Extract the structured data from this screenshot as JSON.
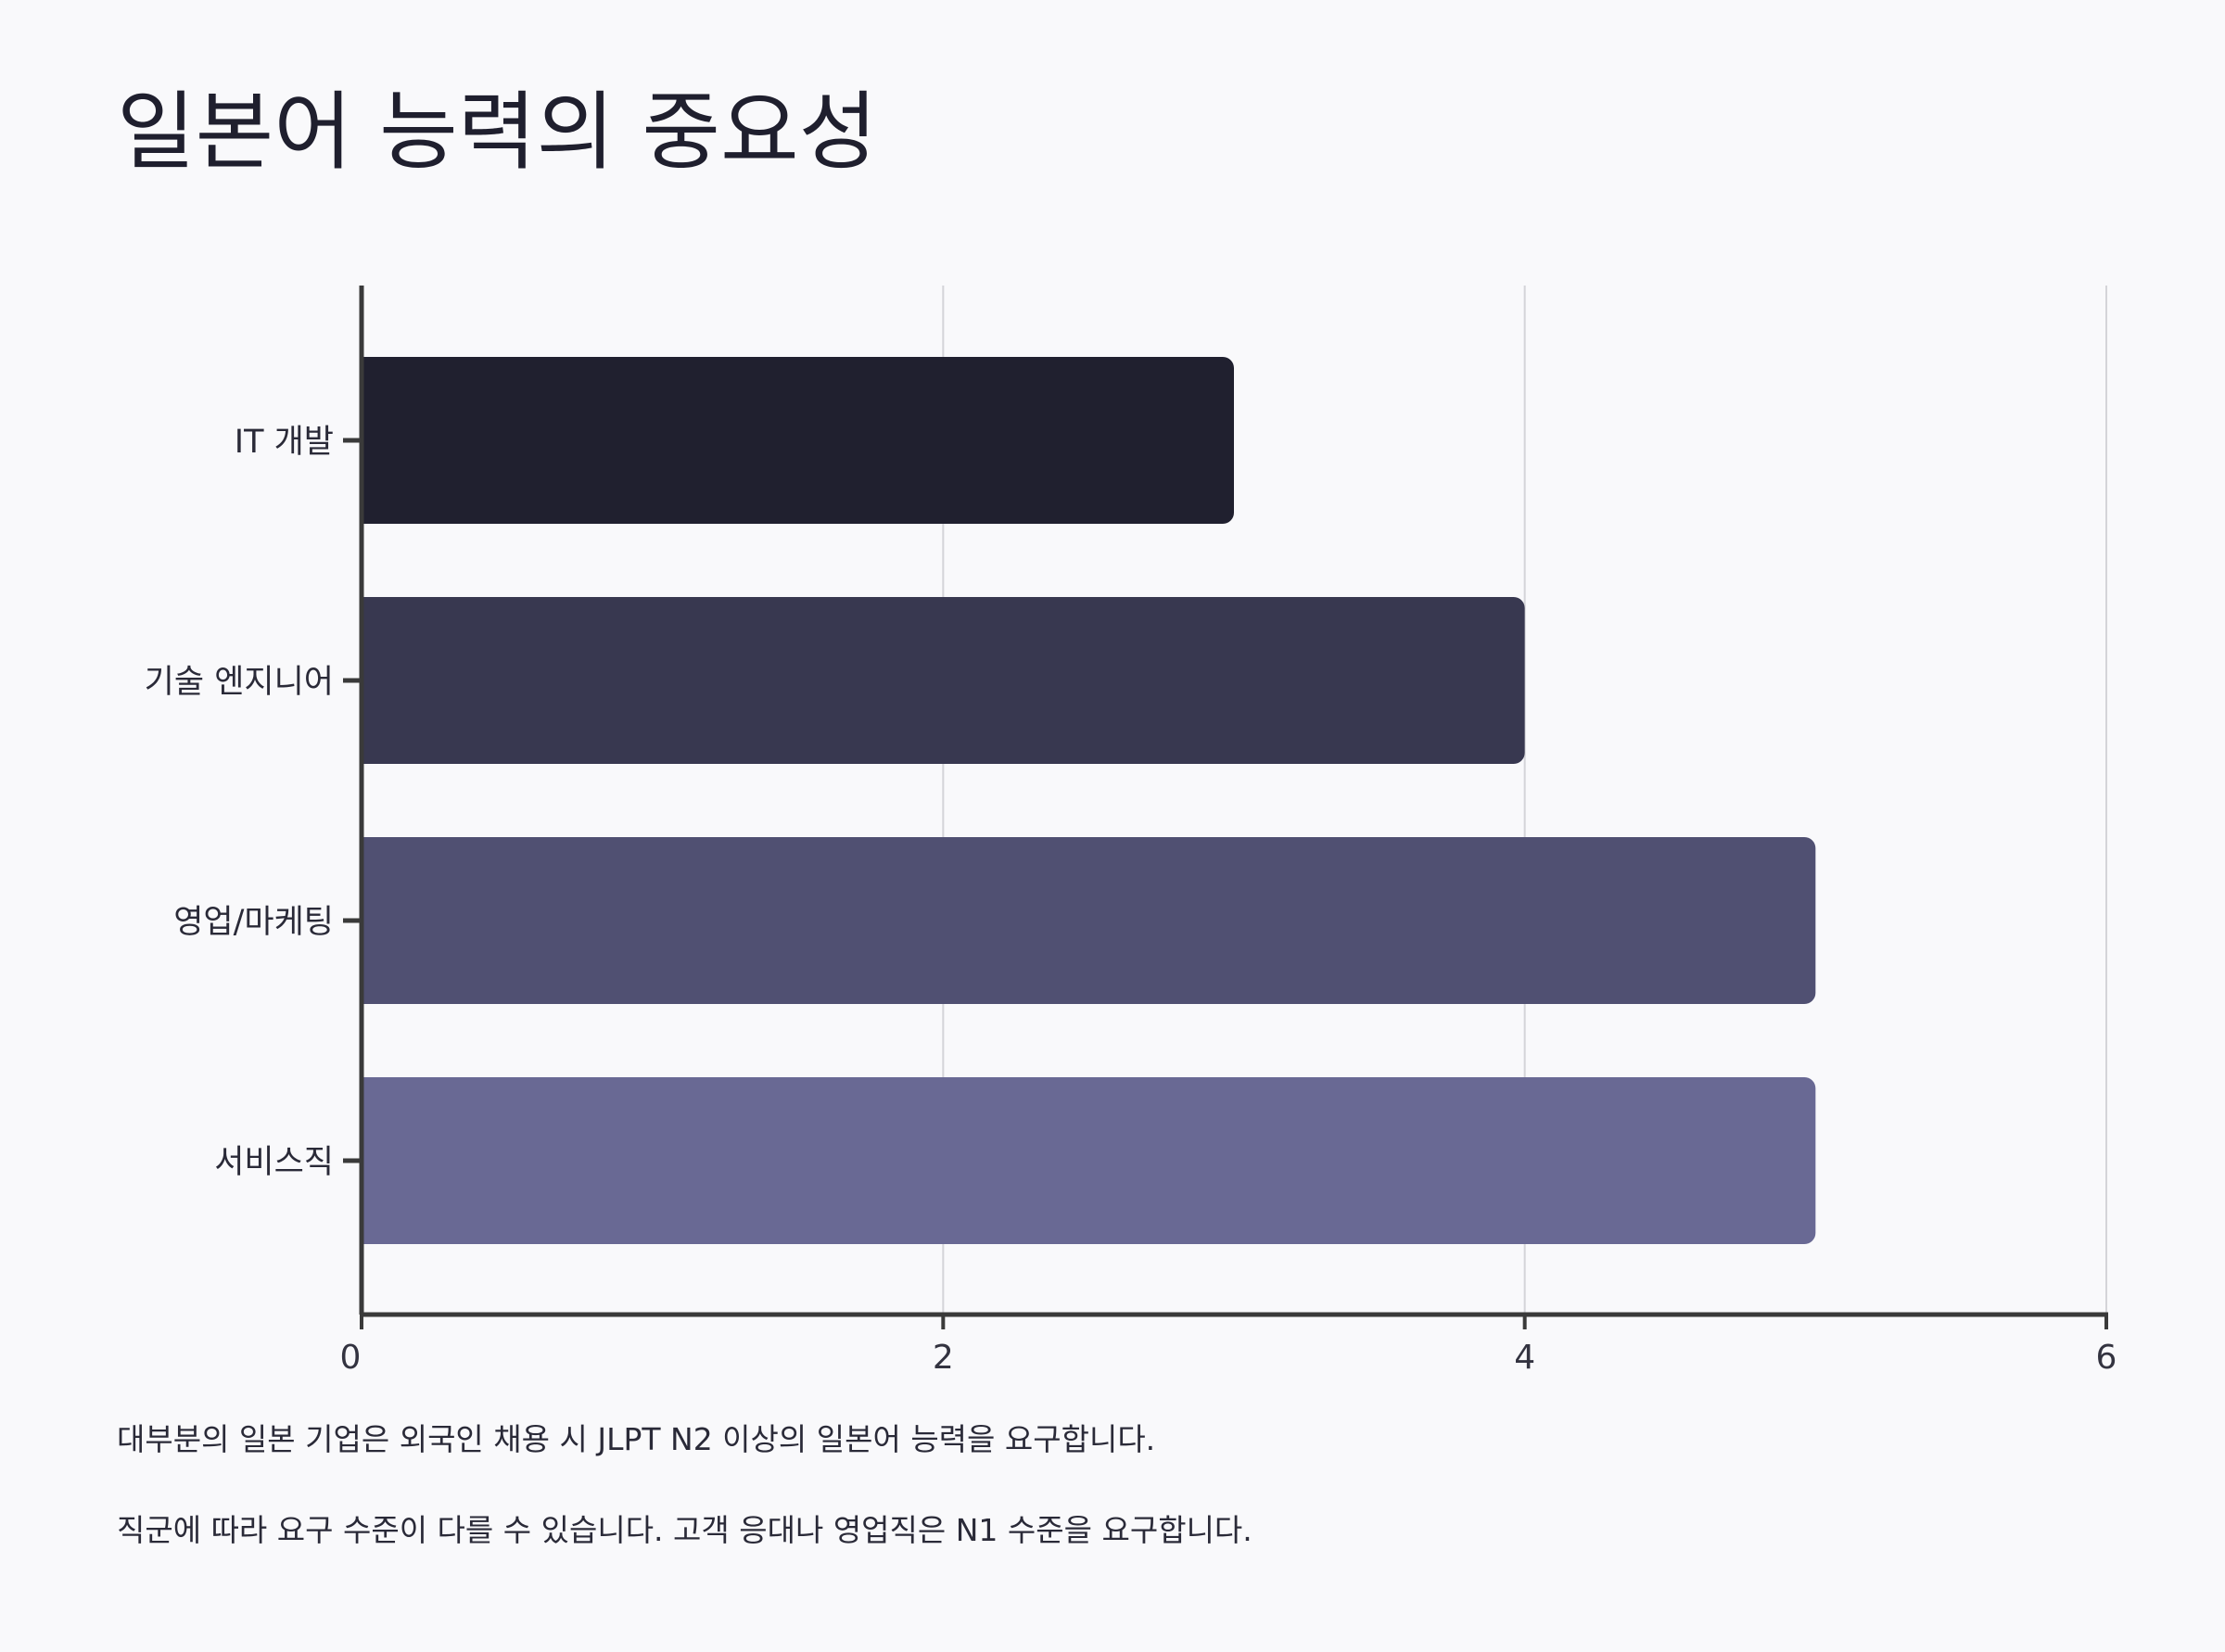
{
  "title": "일본어 능력의 중요성",
  "chart_data": {
    "type": "bar",
    "orientation": "horizontal",
    "title": "일본어 능력의 중요성",
    "xlabel": "",
    "ylabel": "",
    "categories": [
      "IT 개발",
      "기술 엔지니어",
      "영업/마케팅",
      "서비스직"
    ],
    "values": [
      3,
      4,
      5,
      5
    ],
    "colors": [
      "#20202f",
      "#383850",
      "#505072",
      "#696994"
    ],
    "xlim": [
      0,
      6
    ],
    "xticks": [
      0,
      2,
      4,
      6
    ],
    "grid": "vertical",
    "legend": "none"
  },
  "notes": [
    "대부분의 일본 기업은 외국인 채용 시 JLPT N2 이상의 일본어 능력을 요구합니다.",
    "직군에 따라 요구 수준이 다를 수 있습니다. 고객 응대나 영업직은 N1 수준을 요구합니다."
  ]
}
